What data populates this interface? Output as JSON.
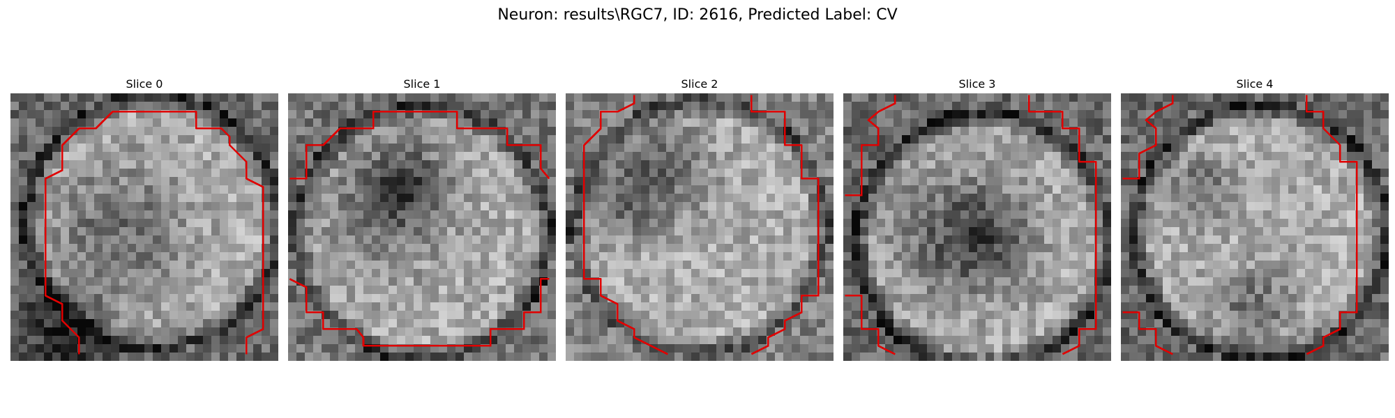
{
  "figure": {
    "title": "Neuron: results\\RGC7, ID: 2616, Predicted Label: CV",
    "contour_color": "#e00000"
  },
  "panels": [
    {
      "label": "Slice 0",
      "seed": 11,
      "center": [
        0.53,
        0.48
      ],
      "dark_blobs": [
        [
          0.4,
          0.52,
          0.18
        ],
        [
          0.22,
          0.9,
          0.12
        ]
      ],
      "rim_dark": 0.55
    },
    {
      "label": "Slice 1",
      "seed": 23,
      "center": [
        0.5,
        0.52
      ],
      "dark_blobs": [
        [
          0.36,
          0.42,
          0.16
        ],
        [
          0.45,
          0.33,
          0.1
        ]
      ],
      "rim_dark": 0.5
    },
    {
      "label": "Slice 2",
      "seed": 37,
      "center": [
        0.5,
        0.5
      ],
      "dark_blobs": [
        [
          0.38,
          0.28,
          0.12
        ],
        [
          0.22,
          0.4,
          0.1
        ]
      ],
      "rim_dark": 0.45
    },
    {
      "label": "Slice 3",
      "seed": 41,
      "center": [
        0.52,
        0.55
      ],
      "dark_blobs": [
        [
          0.4,
          0.52,
          0.17
        ],
        [
          0.55,
          0.55,
          0.12
        ]
      ],
      "rim_dark": 0.55
    },
    {
      "label": "Slice 4",
      "seed": 53,
      "center": [
        0.52,
        0.52
      ],
      "dark_blobs": [
        [
          0.3,
          0.35,
          0.08
        ],
        [
          0.5,
          0.8,
          0.1
        ]
      ],
      "rim_dark": 0.55
    }
  ]
}
